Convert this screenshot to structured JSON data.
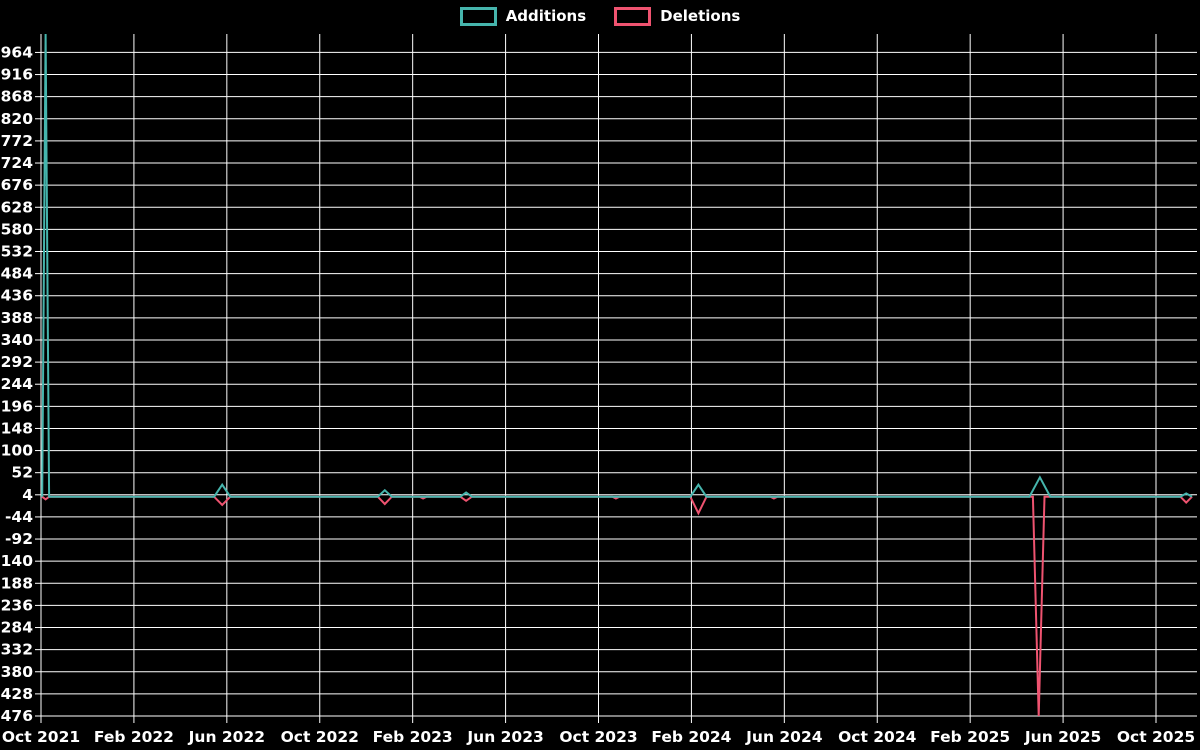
{
  "page": {
    "background_color": "#000000",
    "text_color": "#ffffff",
    "grid_color": "#ffffff"
  },
  "legend": {
    "position": "top-center",
    "items": [
      {
        "label": "Additions",
        "color": "#46b5ad"
      },
      {
        "label": "Deletions",
        "color": "#ef5370"
      }
    ]
  },
  "chart_data": {
    "type": "line",
    "title": "",
    "xlabel": "",
    "ylabel": "",
    "grid": true,
    "legend_position": "top-center",
    "background_color": "#000000",
    "x_axis": {
      "start": "Oct 2021",
      "end": "Nov 2025",
      "months_per_tick": 4,
      "tick_labels": [
        "Oct 2021",
        "Feb 2022",
        "Jun 2022",
        "Oct 2022",
        "Feb 2023",
        "Jun 2023",
        "Oct 2023",
        "Feb 2024",
        "Jun 2024",
        "Oct 2024",
        "Feb 2025",
        "Jun 2025",
        "Oct 2025"
      ]
    },
    "y_axis": {
      "min": -476,
      "max": 1004,
      "tick_step": 48,
      "ticks": [
        964,
        916,
        868,
        820,
        772,
        724,
        676,
        628,
        580,
        532,
        484,
        436,
        388,
        340,
        292,
        244,
        196,
        148,
        100,
        52,
        4,
        -44,
        -92,
        -140,
        -188,
        -236,
        -284,
        -332,
        -380,
        -428,
        -476
      ]
    },
    "line_extent_months": [
      0.05,
      49.55
    ],
    "series": [
      {
        "name": "Additions",
        "color": "#46b5ad",
        "baseline": 0,
        "spikes": [
          {
            "date": "Oct 2021",
            "month_offset": 0.2,
            "value": 1004,
            "half_width_months": 0.15
          },
          {
            "date": "Jun 2022",
            "month_offset": 7.8,
            "value": 26,
            "half_width_months": 0.35
          },
          {
            "date": "Jan 2023",
            "month_offset": 14.8,
            "value": 14,
            "half_width_months": 0.3
          },
          {
            "date": "May 2023",
            "month_offset": 18.3,
            "value": 9,
            "half_width_months": 0.25
          },
          {
            "date": "Feb 2024",
            "month_offset": 28.3,
            "value": 26,
            "half_width_months": 0.35
          },
          {
            "date": "May 2025",
            "month_offset": 43.0,
            "value": 42,
            "half_width_months": 0.45
          },
          {
            "date": "Nov 2025",
            "month_offset": 49.3,
            "value": 7,
            "half_width_months": 0.25
          }
        ]
      },
      {
        "name": "Deletions",
        "color": "#ef5370",
        "baseline": 0,
        "spikes": [
          {
            "date": "Oct 2021",
            "month_offset": 0.2,
            "value": -6,
            "half_width_months": 0.15
          },
          {
            "date": "Jun 2022",
            "month_offset": 7.8,
            "value": -18,
            "half_width_months": 0.35
          },
          {
            "date": "Jan 2023",
            "month_offset": 14.8,
            "value": -16,
            "half_width_months": 0.3
          },
          {
            "date": "Mar 2023",
            "month_offset": 16.45,
            "value": -4,
            "half_width_months": 0.15
          },
          {
            "date": "May 2023",
            "month_offset": 18.3,
            "value": -9,
            "half_width_months": 0.25
          },
          {
            "date": "Nov 2023",
            "month_offset": 24.75,
            "value": -4,
            "half_width_months": 0.15
          },
          {
            "date": "Feb 2024",
            "month_offset": 28.3,
            "value": -36,
            "half_width_months": 0.35
          },
          {
            "date": "Jun 2024",
            "month_offset": 31.55,
            "value": -4,
            "half_width_months": 0.15
          },
          {
            "date": "May 2025",
            "month_offset": 42.95,
            "value": -476,
            "half_width_months": 0.25
          },
          {
            "date": "Nov 2025",
            "month_offset": 49.3,
            "value": -13,
            "half_width_months": 0.25
          }
        ]
      }
    ]
  }
}
